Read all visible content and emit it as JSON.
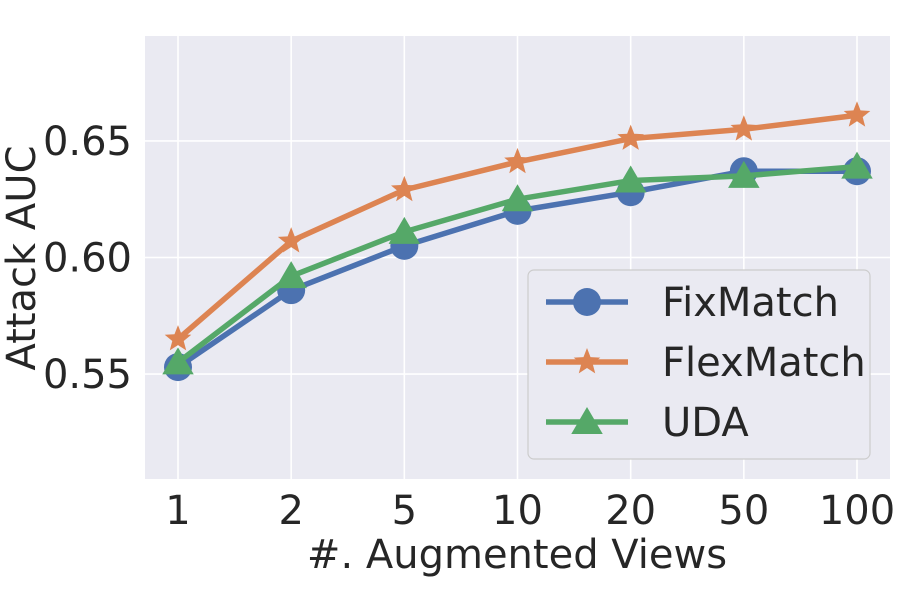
{
  "chart_data": {
    "type": "line",
    "title": "",
    "xlabel": "#. Augmented Views",
    "ylabel": "Attack AUC",
    "categories": [
      "1",
      "2",
      "5",
      "10",
      "20",
      "50",
      "100"
    ],
    "ylim": [
      0.505,
      0.695
    ],
    "yticks": [
      0.55,
      0.6,
      0.65
    ],
    "ytick_labels": [
      "0.55",
      "0.60",
      "0.65"
    ],
    "grid": true,
    "legend_position": "lower-right",
    "series": [
      {
        "name": "FixMatch",
        "marker": "circle",
        "color": "#4c72b0",
        "values": [
          0.553,
          0.586,
          0.605,
          0.62,
          0.628,
          0.637,
          0.637
        ]
      },
      {
        "name": "FlexMatch",
        "marker": "star",
        "color": "#dd8452",
        "values": [
          0.565,
          0.607,
          0.629,
          0.641,
          0.651,
          0.655,
          0.661
        ]
      },
      {
        "name": "UDA",
        "marker": "triangle",
        "color": "#55a868",
        "values": [
          0.555,
          0.592,
          0.611,
          0.625,
          0.633,
          0.635,
          0.639
        ]
      }
    ]
  }
}
